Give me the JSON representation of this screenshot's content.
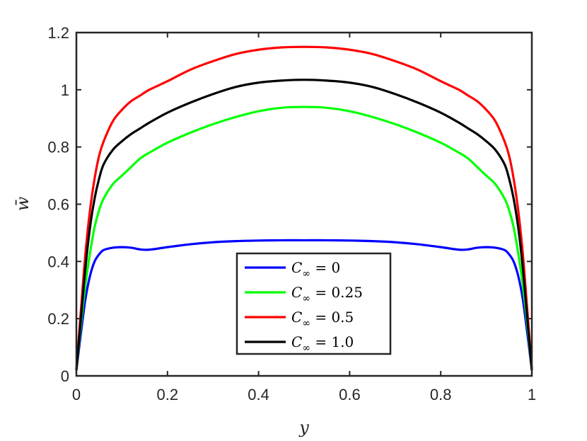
{
  "chart_data": {
    "type": "line",
    "xlabel": "y",
    "ylabel": "w̄",
    "xlim": [
      0,
      1
    ],
    "ylim": [
      0,
      1.2
    ],
    "xticks": [
      "0",
      "0.2",
      "0.4",
      "0.6",
      "0.8",
      "1"
    ],
    "yticks": [
      "0",
      "0.2",
      "0.4",
      "0.6",
      "0.8",
      "1",
      "1.2"
    ],
    "grid": false,
    "legend_position": "bottom-center",
    "x": [
      0,
      0.01,
      0.02,
      0.03,
      0.04,
      0.05,
      0.06,
      0.08,
      0.1,
      0.12,
      0.14,
      0.16,
      0.2,
      0.25,
      0.3,
      0.35,
      0.4,
      0.45,
      0.5,
      0.55,
      0.6,
      0.65,
      0.7,
      0.75,
      0.8,
      0.84,
      0.86,
      0.88,
      0.9,
      0.92,
      0.94,
      0.95,
      0.96,
      0.97,
      0.98,
      0.99,
      1.0
    ],
    "series": [
      {
        "name": "C∞ = 0",
        "color": "#0000ff",
        "values": [
          0.02,
          0.15,
          0.27,
          0.35,
          0.4,
          0.425,
          0.44,
          0.448,
          0.45,
          0.448,
          0.442,
          0.441,
          0.45,
          0.46,
          0.467,
          0.471,
          0.473,
          0.474,
          0.474,
          0.474,
          0.473,
          0.471,
          0.467,
          0.46,
          0.45,
          0.441,
          0.442,
          0.448,
          0.45,
          0.448,
          0.44,
          0.425,
          0.4,
          0.35,
          0.27,
          0.15,
          0.02
        ]
      },
      {
        "name": "C∞ = 0.25",
        "color": "#00ff00",
        "values": [
          0.02,
          0.18,
          0.32,
          0.43,
          0.52,
          0.58,
          0.62,
          0.67,
          0.7,
          0.73,
          0.76,
          0.78,
          0.815,
          0.85,
          0.88,
          0.905,
          0.925,
          0.937,
          0.94,
          0.937,
          0.925,
          0.905,
          0.88,
          0.85,
          0.815,
          0.78,
          0.76,
          0.73,
          0.7,
          0.67,
          0.62,
          0.58,
          0.52,
          0.43,
          0.32,
          0.18,
          0.02
        ]
      },
      {
        "name": "C∞ = 0.5",
        "color": "#ff0000",
        "values": [
          0.02,
          0.23,
          0.43,
          0.58,
          0.69,
          0.77,
          0.82,
          0.89,
          0.93,
          0.96,
          0.98,
          1.0,
          1.03,
          1.07,
          1.1,
          1.125,
          1.14,
          1.148,
          1.15,
          1.148,
          1.14,
          1.125,
          1.1,
          1.07,
          1.03,
          1.0,
          0.98,
          0.96,
          0.93,
          0.89,
          0.82,
          0.77,
          0.69,
          0.58,
          0.43,
          0.23,
          0.02
        ]
      },
      {
        "name": "C∞ = 1.0",
        "color": "#000000",
        "values": [
          0.02,
          0.2,
          0.38,
          0.52,
          0.62,
          0.69,
          0.74,
          0.79,
          0.82,
          0.845,
          0.865,
          0.885,
          0.92,
          0.955,
          0.985,
          1.01,
          1.025,
          1.032,
          1.035,
          1.032,
          1.025,
          1.01,
          0.985,
          0.955,
          0.92,
          0.885,
          0.865,
          0.845,
          0.82,
          0.79,
          0.74,
          0.69,
          0.62,
          0.52,
          0.38,
          0.2,
          0.02
        ]
      }
    ]
  },
  "legend": {
    "entries": [
      {
        "symbol": "C",
        "subscript": "∞",
        "rest": " = 0"
      },
      {
        "symbol": "C",
        "subscript": "∞",
        "rest": " = 0.25"
      },
      {
        "symbol": "C",
        "subscript": "∞",
        "rest": " = 0.5"
      },
      {
        "symbol": "C",
        "subscript": "∞",
        "rest": " = 1.0"
      }
    ]
  }
}
